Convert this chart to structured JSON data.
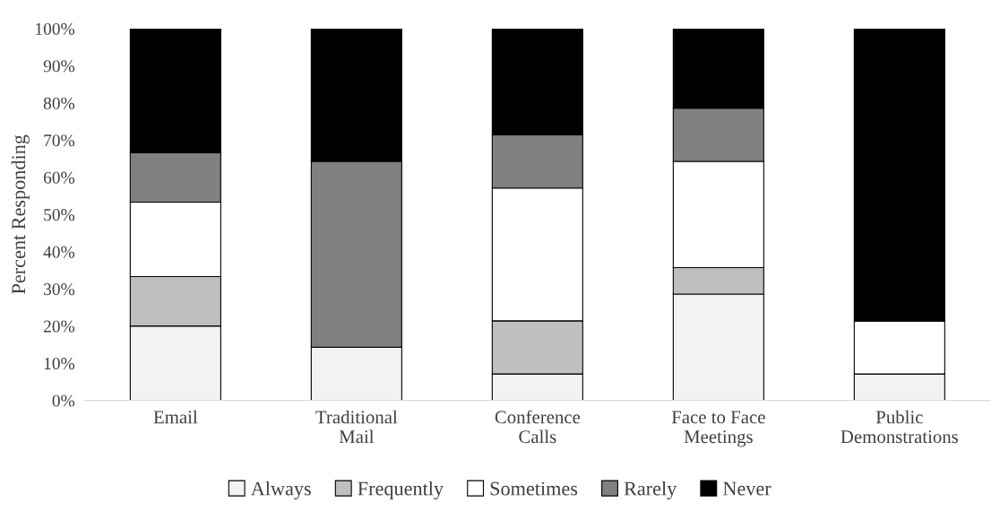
{
  "chart_data": {
    "type": "bar",
    "stacked": true,
    "ylabel": "Percent Responding",
    "categories": [
      "Email",
      "Traditional\nMail",
      "Conference\nCalls",
      "Face to Face\nMeetings",
      "Public\nDemonstrations"
    ],
    "series": [
      {
        "name": "Always",
        "color": "#f2f2f2",
        "values": [
          20,
          14.3,
          7.1,
          28.6,
          7.1
        ]
      },
      {
        "name": "Frequently",
        "color": "#bfbfbf",
        "values": [
          13.3,
          0,
          14.3,
          7.1,
          0
        ]
      },
      {
        "name": "Sometimes",
        "color": "#ffffff",
        "values": [
          20,
          0,
          35.7,
          28.6,
          14.3
        ]
      },
      {
        "name": "Rarely",
        "color": "#808080",
        "values": [
          13.3,
          50,
          14.3,
          14.3,
          0
        ]
      },
      {
        "name": "Never",
        "color": "#000000",
        "values": [
          33.4,
          35.7,
          28.6,
          21.4,
          78.6
        ]
      }
    ],
    "ylim": [
      0,
      100
    ],
    "yticks": [
      {
        "value": 0,
        "label": "0%"
      },
      {
        "value": 10,
        "label": "10%"
      },
      {
        "value": 20,
        "label": "20%"
      },
      {
        "value": 30,
        "label": "30%"
      },
      {
        "value": 40,
        "label": "40%"
      },
      {
        "value": 50,
        "label": "50%"
      },
      {
        "value": 60,
        "label": "60%"
      },
      {
        "value": 70,
        "label": "70%"
      },
      {
        "value": 80,
        "label": "80%"
      },
      {
        "value": 90,
        "label": "90%"
      },
      {
        "value": 100,
        "label": "100%"
      }
    ],
    "legend": "bottom"
  }
}
